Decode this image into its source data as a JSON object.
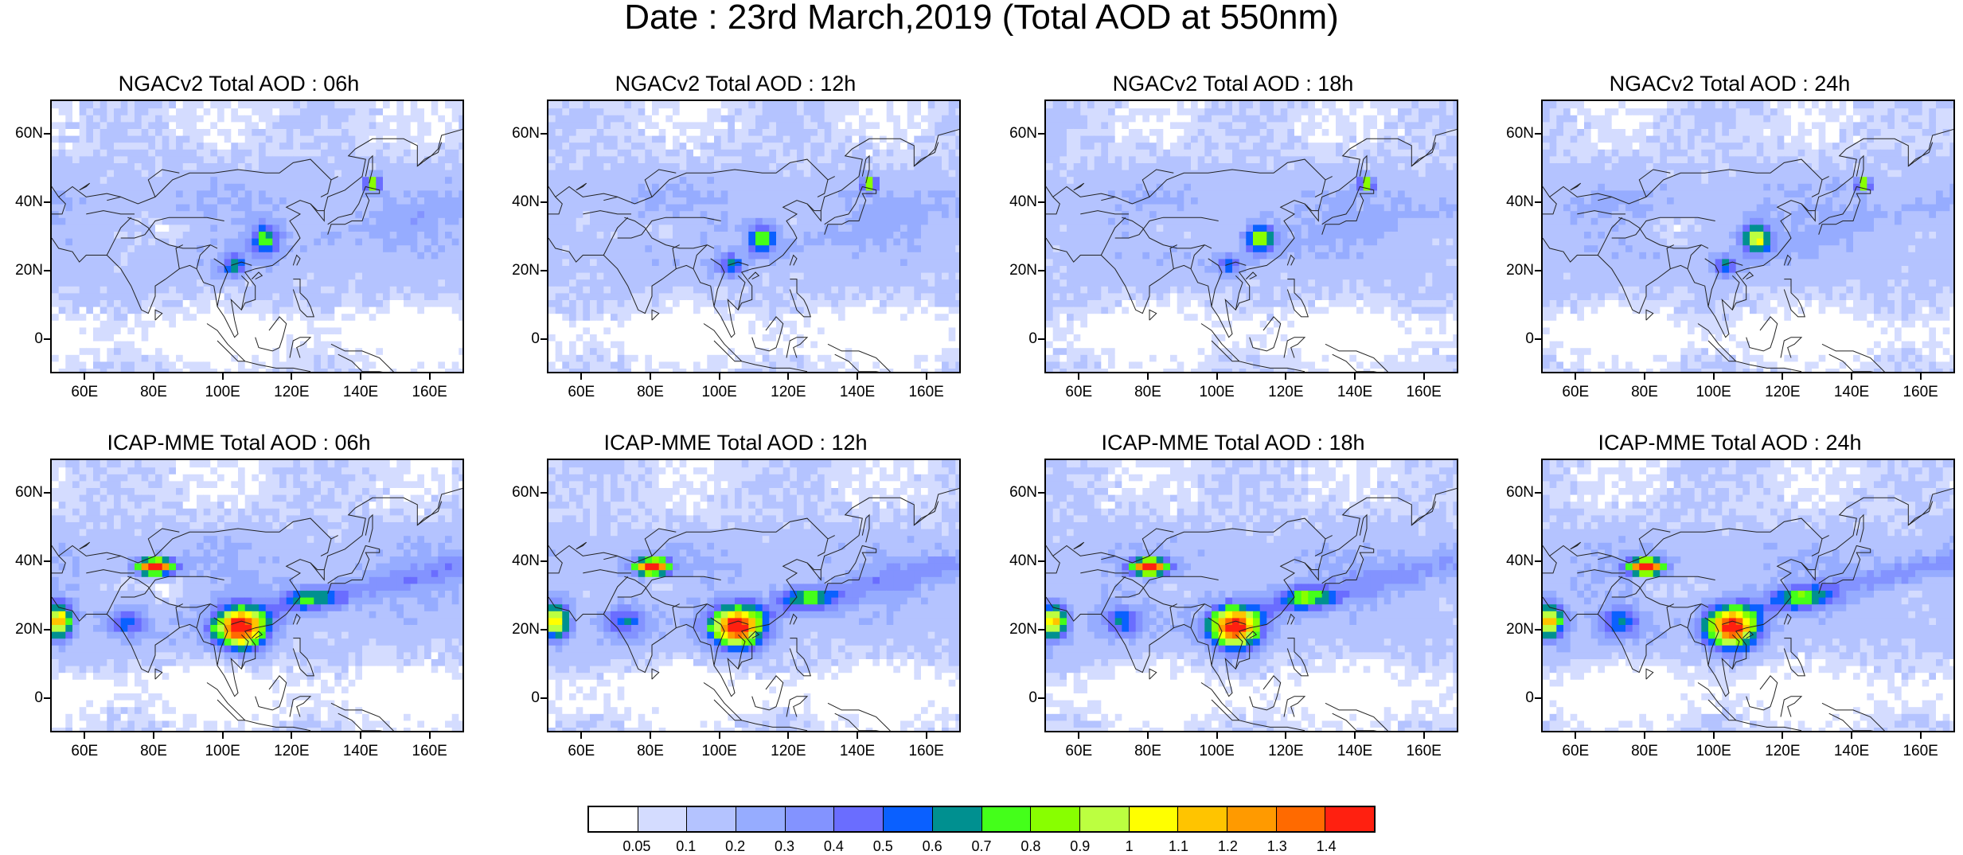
{
  "title": "Date : 23rd March,2019 (Total AOD at 550nm)",
  "panels": [
    {
      "title": "NGACv2 Total AOD : 06h",
      "model": "NGACv2",
      "hour": "06h"
    },
    {
      "title": "NGACv2 Total AOD : 12h",
      "model": "NGACv2",
      "hour": "12h"
    },
    {
      "title": "NGACv2 Total AOD : 18h",
      "model": "NGACv2",
      "hour": "18h"
    },
    {
      "title": "NGACv2 Total AOD : 24h",
      "model": "NGACv2",
      "hour": "24h"
    },
    {
      "title": "ICAP-MME Total AOD : 06h",
      "model": "ICAP-MME",
      "hour": "06h"
    },
    {
      "title": "ICAP-MME Total AOD : 12h",
      "model": "ICAP-MME",
      "hour": "12h"
    },
    {
      "title": "ICAP-MME Total AOD : 18h",
      "model": "ICAP-MME",
      "hour": "18h"
    },
    {
      "title": "ICAP-MME Total AOD : 24h",
      "model": "ICAP-MME",
      "hour": "24h"
    }
  ],
  "axes": {
    "lat_labels": [
      "60N",
      "40N",
      "20N",
      "0"
    ],
    "lon_labels": [
      "60E",
      "80E",
      "100E",
      "120E",
      "140E",
      "160E"
    ],
    "lat_range": [
      -10,
      70
    ],
    "lon_range": [
      50,
      170
    ]
  },
  "colorbar": {
    "labels": [
      "0.05",
      "0.1",
      "0.2",
      "0.3",
      "0.4",
      "0.5",
      "0.6",
      "0.7",
      "0.8",
      "0.9",
      "1",
      "1.1",
      "1.2",
      "1.3",
      "1.4"
    ],
    "colors": [
      "#ffffff",
      "#d4dcff",
      "#b4c3ff",
      "#96acff",
      "#8393ff",
      "#6a6dff",
      "#0a60ff",
      "#009090",
      "#44ff1a",
      "#88ff00",
      "#bcff40",
      "#ffff00",
      "#ffc400",
      "#ff9a00",
      "#ff6a00",
      "#ff2010"
    ]
  }
}
